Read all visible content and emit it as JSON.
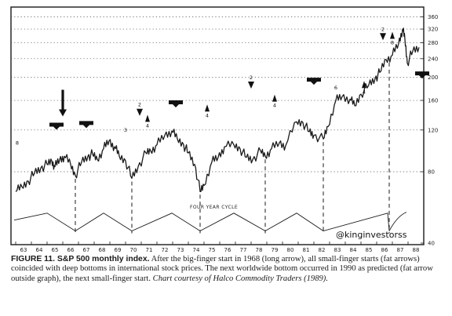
{
  "chart_data": {
    "type": "line",
    "title": "",
    "xlabel": "",
    "ylabel": "",
    "x_ticks": [
      "63",
      "64",
      "65",
      "66",
      "67",
      "68",
      "69",
      "70",
      "71",
      "72",
      "73",
      "74",
      "75",
      "76",
      "77",
      "78",
      "79",
      "80",
      "81",
      "82",
      "83",
      "84",
      "85",
      "86",
      "87",
      "88"
    ],
    "y_ticks": [
      360,
      320,
      280,
      240,
      200,
      160,
      120,
      80,
      40
    ],
    "scale": "log",
    "ylim": [
      40,
      370
    ],
    "xlim": [
      1962.7,
      1989.0
    ],
    "grid": "horizontal dotted",
    "series": [
      {
        "x": [
          1963.0,
          1963.4,
          1963.8,
          1964.2,
          1964.6,
          1965.0,
          1965.3,
          1965.5,
          1965.8,
          1966.1,
          1966.5,
          1966.8,
          1967.2,
          1967.6,
          1967.9,
          1968.2,
          1968.6,
          1968.95,
          1969.3,
          1969.6,
          1970.0,
          1970.4,
          1970.8,
          1971.3,
          1971.6,
          1972.0,
          1972.5,
          1972.95,
          1973.3,
          1973.7,
          1974.0,
          1974.4,
          1974.75,
          1975.0,
          1975.5,
          1975.9,
          1976.3,
          1976.9,
          1977.3,
          1977.7,
          1978.1,
          1978.6,
          1978.9,
          1979.3,
          1979.8,
          1980.2,
          1980.9,
          1981.3,
          1981.7,
          1982.0,
          1982.6,
          1982.9,
          1983.4,
          1983.8,
          1984.3,
          1984.6,
          1985.0,
          1985.5,
          1985.9,
          1986.2,
          1986.6,
          1987.0,
          1987.4,
          1987.65,
          1987.8,
          1987.95,
          1988.3,
          1988.7
        ],
        "y": [
          66,
          69,
          73,
          79,
          83,
          86,
          89,
          84,
          90,
          93,
          86,
          77,
          88,
          93,
          95,
          90,
          100,
          108,
          102,
          93,
          89,
          75,
          84,
          96,
          98,
          104,
          114,
          119,
          110,
          104,
          96,
          86,
          66,
          70,
          88,
          92,
          102,
          104,
          100,
          92,
          90,
          98,
          93,
          100,
          106,
          103,
          130,
          129,
          118,
          114,
          110,
          124,
          160,
          166,
          162,
          152,
          170,
          186,
          198,
          210,
          238,
          248,
          278,
          320,
          290,
          230,
          258,
          268
        ]
      }
    ],
    "annotations": [
      {
        "kind": "fat-arrow",
        "year": 1965.6,
        "price": 124
      },
      {
        "kind": "fat-arrow",
        "year": 1967.5,
        "price": 126
      },
      {
        "kind": "long-arrow",
        "year": 1966.0,
        "price": 150
      },
      {
        "kind": "fat-arrow",
        "year": 1973.2,
        "price": 154
      },
      {
        "kind": "fat-arrow",
        "year": 1982.0,
        "price": 192
      },
      {
        "kind": "fat-arrow",
        "year": 1988.9,
        "price": 204
      },
      {
        "kind": "down-arrow",
        "label": "2",
        "year": 1970.9,
        "price": 142
      },
      {
        "kind": "down-arrow",
        "label": "2",
        "year": 1978.0,
        "price": 185
      },
      {
        "kind": "down-arrow",
        "label": "2",
        "year": 1986.4,
        "price": 296
      },
      {
        "kind": "up-arrow",
        "label": "4",
        "year": 1971.4,
        "price": 134
      },
      {
        "kind": "up-arrow",
        "label": "4",
        "year": 1975.2,
        "price": 148
      },
      {
        "kind": "up-arrow",
        "label": "4",
        "year": 1979.5,
        "price": 163
      },
      {
        "kind": "up-arrow",
        "label": "4",
        "year": 1985.2,
        "price": 186
      },
      {
        "kind": "up-arrow",
        "label": "8",
        "year": 1987.0,
        "price": 300
      },
      {
        "kind": "label",
        "text": "6",
        "year": 1983.4,
        "price": 178
      },
      {
        "kind": "label",
        "text": "3",
        "year": 1970.0,
        "price": 118
      },
      {
        "kind": "label",
        "text": "8",
        "year": 1963.1,
        "price": 104
      },
      {
        "kind": "label",
        "text": "FOUR YEAR CYCLE",
        "year": 1975.2,
        "price": 56
      }
    ],
    "cycle_bottoms": [
      1966.8,
      1970.4,
      1974.75,
      1978.9,
      1982.6,
      1986.8
    ],
    "cycle_wave_peaks": [
      1965.0,
      1968.6,
      1972.95,
      1976.9,
      1980.9,
      1986.7
    ]
  },
  "figure": {
    "cycle_label": "FOUR YEAR CYCLE",
    "watermark": "@kinginvestorss",
    "caption": {
      "fig_label": "FIGURE 11. S&P 500 monthly index.",
      "text": " After the big-finger start in 1968 (long arrow), all small-finger starts (fat arrows) coincided with deep bottoms in international stock prices. The next worldwide bottom occurred in 1990 as predicted (fat arrow outside graph), the next small-finger start. ",
      "credit": "Chart courtesy of Halco Commodity Traders (1989)."
    }
  },
  "colors": {
    "ink": "#1a1a1a",
    "paper": "#ffffff"
  }
}
